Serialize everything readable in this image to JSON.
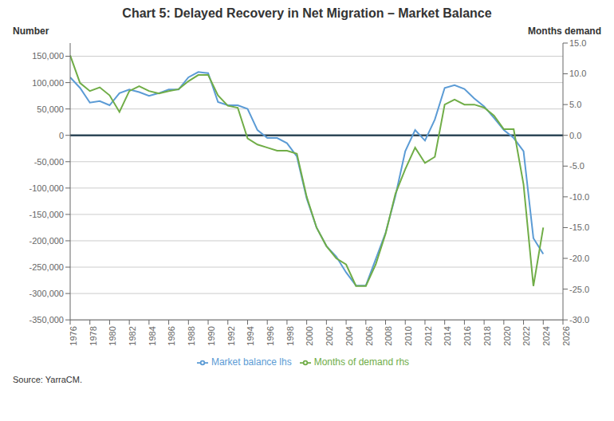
{
  "chart_data": {
    "type": "line",
    "title": "Chart 5: Delayed Recovery in Net Migration – Market Balance",
    "ylabel": "Number",
    "y2label": "Months demand",
    "source": "Source: YarraCM.",
    "x": [
      1976,
      1977,
      1978,
      1979,
      1980,
      1981,
      1982,
      1983,
      1984,
      1985,
      1986,
      1987,
      1988,
      1989,
      1990,
      1991,
      1992,
      1993,
      1994,
      1995,
      1996,
      1997,
      1998,
      1999,
      2000,
      2001,
      2002,
      2003,
      2004,
      2005,
      2006,
      2007,
      2008,
      2009,
      2010,
      2011,
      2012,
      2013,
      2014,
      2015,
      2016,
      2017,
      2018,
      2019,
      2020,
      2021,
      2022,
      2023,
      2024
    ],
    "xlim": [
      1976,
      2026
    ],
    "xticks": [
      1976,
      1978,
      1980,
      1982,
      1984,
      1986,
      1988,
      1990,
      1992,
      1994,
      1996,
      1998,
      2000,
      2002,
      2004,
      2006,
      2008,
      2010,
      2012,
      2014,
      2016,
      2018,
      2020,
      2022,
      2024,
      2026
    ],
    "ylim": [
      -350000,
      175000
    ],
    "yticks": [
      {
        "value": -350000,
        "label": "-350,000"
      },
      {
        "value": -300000,
        "label": "-300,000"
      },
      {
        "value": -250000,
        "label": "-250,000"
      },
      {
        "value": -200000,
        "label": "-200,000"
      },
      {
        "value": -150000,
        "label": "-150,000"
      },
      {
        "value": -100000,
        "label": "-100,000"
      },
      {
        "value": -50000,
        "label": "-50,000"
      },
      0,
      {
        "value": 50000,
        "label": "50,000"
      },
      {
        "value": 100000,
        "label": "100,000"
      },
      {
        "value": 150000,
        "label": "150,000"
      }
    ],
    "y2lim": [
      -30.0,
      15.0
    ],
    "y2ticks": [
      {
        "value": -30.0,
        "label": "-30.0"
      },
      {
        "value": -25.0,
        "label": "-25.0"
      },
      {
        "value": -20.0,
        "label": "-20.0"
      },
      {
        "value": -15.0,
        "label": "-15.0"
      },
      {
        "value": -10.0,
        "label": "-10.0"
      },
      {
        "value": -5.0,
        "label": "-5.0"
      },
      {
        "value": 0.0,
        "label": "0.0"
      },
      {
        "value": 5.0,
        "label": "5.0"
      },
      {
        "value": 10.0,
        "label": "10.0"
      },
      {
        "value": 15.0,
        "label": "15.0"
      }
    ],
    "grid": true,
    "legend": "bottom",
    "reference_line": {
      "y": 0,
      "color": "#2F4858"
    },
    "series": [
      {
        "name": "Market balance lhs",
        "color": "#5B9BD5",
        "values": [
          110000,
          90000,
          62000,
          65000,
          57000,
          80000,
          87000,
          82000,
          75000,
          80000,
          87000,
          87000,
          110000,
          120000,
          118000,
          63000,
          57000,
          57000,
          50000,
          10000,
          -5000,
          -5000,
          -15000,
          -40000,
          -120000,
          -175000,
          -210000,
          -230000,
          -260000,
          -285000,
          -285000,
          -235000,
          -185000,
          -115000,
          -30000,
          10000,
          -10000,
          30000,
          90000,
          95000,
          88000,
          70000,
          55000,
          33000,
          10000,
          -5000,
          -30000,
          -195000,
          -225000
        ]
      },
      {
        "name": "Months of demand rhs",
        "color": "#70AD47",
        "axis": "y2",
        "values": [
          13.0,
          8.5,
          7.2,
          7.8,
          6.5,
          3.8,
          7.2,
          8.0,
          7.2,
          6.8,
          7.2,
          7.5,
          8.8,
          9.8,
          9.8,
          6.5,
          4.8,
          4.5,
          -0.5,
          -1.5,
          -2.0,
          -2.5,
          -2.5,
          -3.0,
          -10.0,
          -15.0,
          -18.0,
          -20.0,
          -21.0,
          -24.5,
          -24.5,
          -21.0,
          -16.0,
          -9.5,
          -5.5,
          -2.0,
          -4.5,
          -3.5,
          5.0,
          5.8,
          5.0,
          5.0,
          4.5,
          3.2,
          1.0,
          1.0,
          -8.0,
          -24.5,
          -15.0
        ]
      }
    ]
  }
}
